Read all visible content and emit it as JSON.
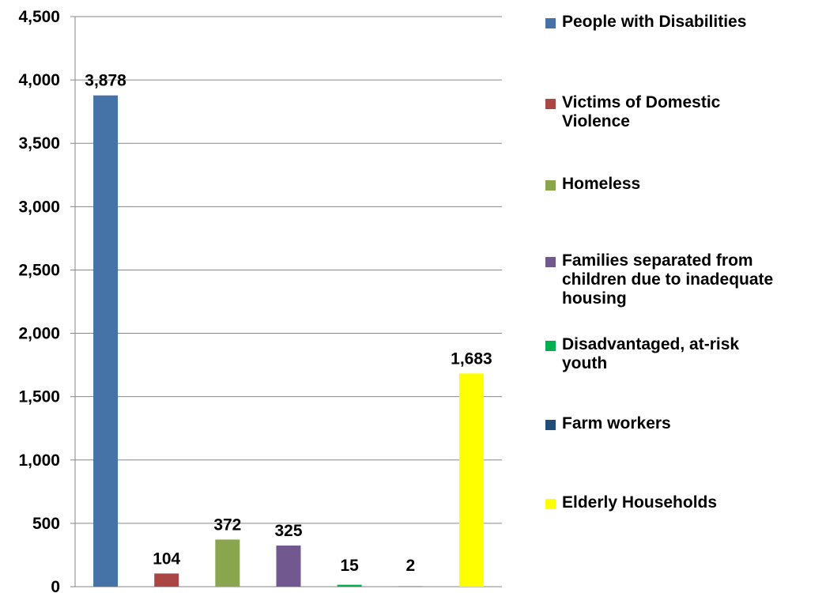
{
  "chart_data": {
    "type": "bar",
    "title": "",
    "xlabel": "",
    "ylabel": "",
    "ylim": [
      0,
      4500
    ],
    "yticks": [
      "0",
      "500",
      "1,000",
      "1,500",
      "2,000",
      "2,500",
      "3,000",
      "3,500",
      "4,000",
      "4,500"
    ],
    "grid": true,
    "legend_position": "right",
    "categories": [
      "People with Disabilities",
      "Victims of Domestic Violence",
      "Homeless",
      "Families separated from children due to inadequate housing",
      "Disadvantaged, at-risk youth",
      "Farm workers",
      "Elderly Households"
    ],
    "values": [
      3878,
      104,
      372,
      325,
      15,
      2,
      1683
    ],
    "value_labels": [
      "3,878",
      "104",
      "372",
      "325",
      "15",
      "2",
      "1,683"
    ],
    "colors": [
      "#4572A7",
      "#AA4643",
      "#89A54E",
      "#71588F",
      "#00B050",
      "#1F4E79",
      "#FFFF00"
    ]
  },
  "legend": {
    "items": [
      {
        "label": "People with Disabilities",
        "color": "#4572A7"
      },
      {
        "label": "Victims of Domestic Violence",
        "color": "#AA4643"
      },
      {
        "label": "Homeless",
        "color": "#89A54E"
      },
      {
        "label": "Families separated from children due to inadequate housing",
        "color": "#71588F"
      },
      {
        "label": "Disadvantaged, at-risk youth",
        "color": "#00B050"
      },
      {
        "label": "Farm workers",
        "color": "#1F4E79"
      },
      {
        "label": "Elderly Households",
        "color": "#FFFF00"
      }
    ]
  }
}
